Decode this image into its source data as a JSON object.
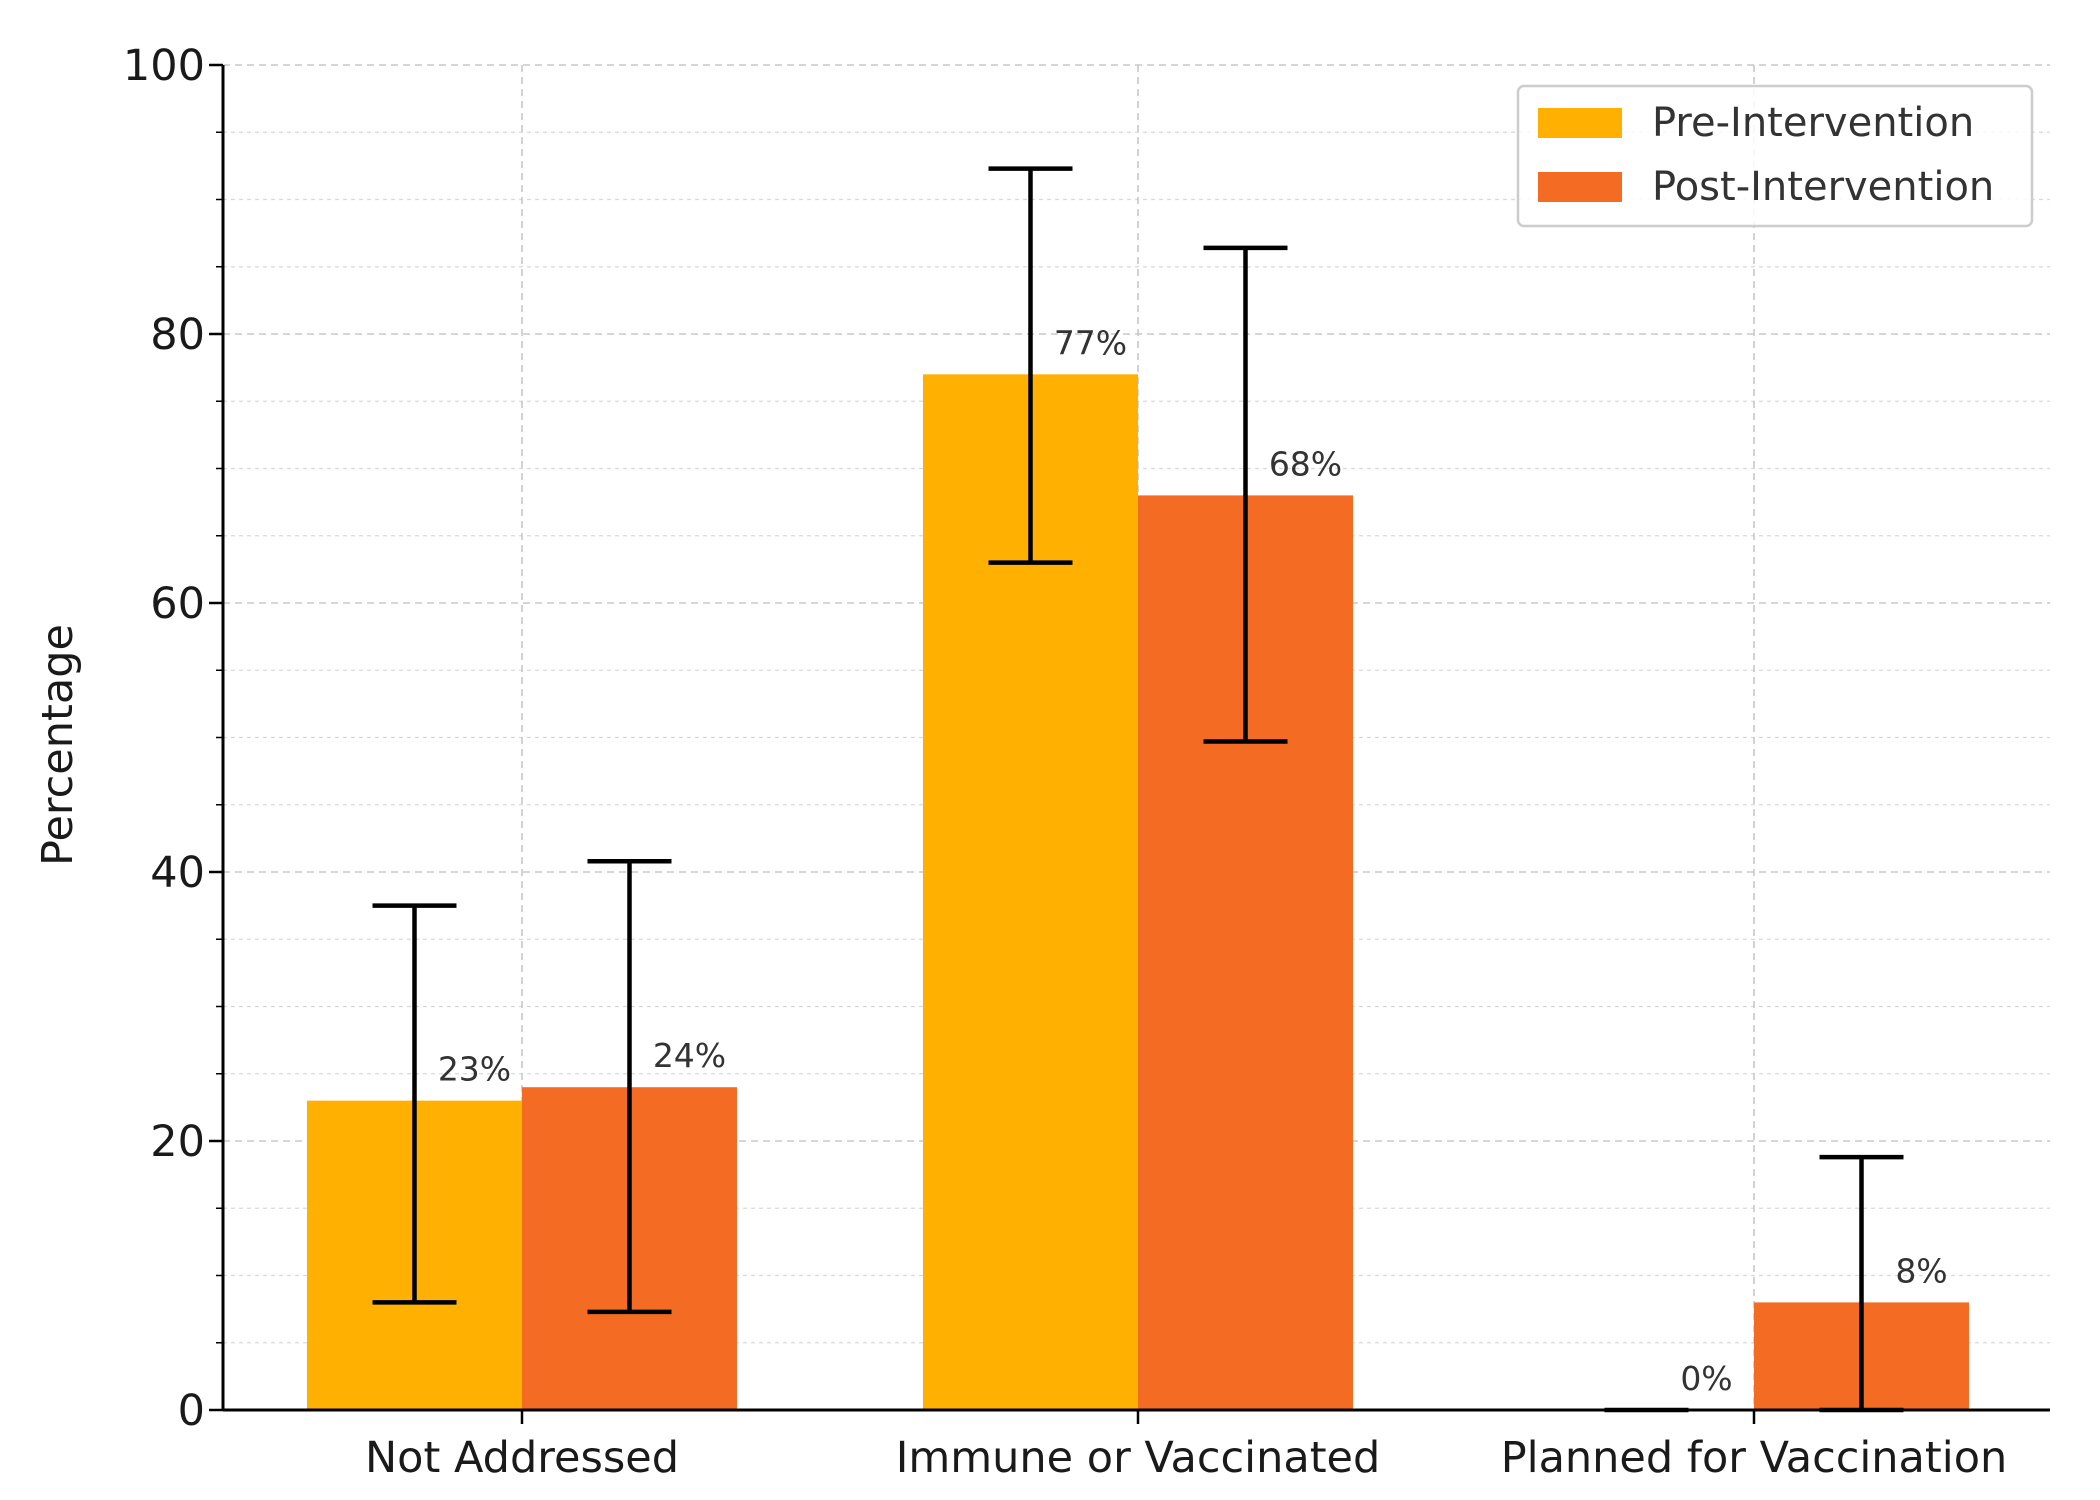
{
  "chart_data": {
    "type": "bar",
    "categories": [
      "Not Addressed",
      "Immune or Vaccinated",
      "Planned for Vaccination"
    ],
    "series": [
      {
        "name": "Pre-Intervention",
        "color": "#FFB000",
        "values": [
          23,
          77,
          0
        ],
        "error_low": [
          8,
          63,
          0
        ],
        "error_high": [
          37.5,
          92.3,
          0
        ],
        "labels": [
          "23%",
          "77%",
          "0%"
        ]
      },
      {
        "name": "Post-Intervention",
        "color": "#F46B23",
        "values": [
          24,
          68,
          8
        ],
        "error_low": [
          7.3,
          49.7,
          0
        ],
        "error_high": [
          40.8,
          86.4,
          18.8
        ],
        "labels": [
          "24%",
          "68%",
          "8%"
        ]
      }
    ],
    "title": "",
    "xlabel": "",
    "ylabel": "Percentage",
    "ylim": [
      0,
      100
    ],
    "yticks": [
      "0",
      "20",
      "40",
      "60",
      "80",
      "100"
    ],
    "grid": true,
    "legend_position": "top-right"
  }
}
